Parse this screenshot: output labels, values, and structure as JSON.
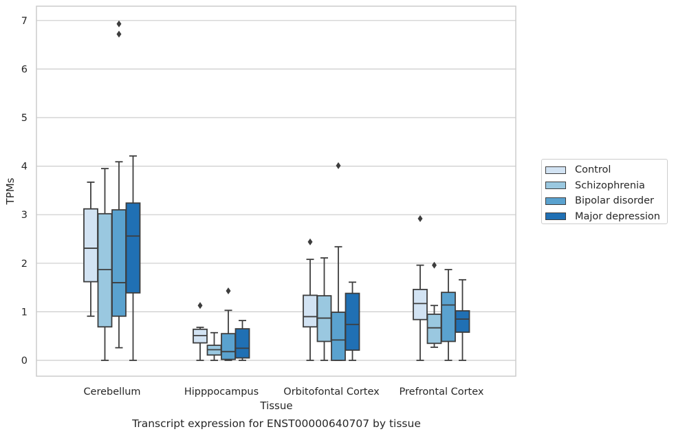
{
  "chart_data": {
    "type": "box",
    "title": "",
    "xlabel": "Tissue",
    "ylabel": "TPMs",
    "caption": "Transcript expression for ENST00000640707 by tissue",
    "ylim": [
      -0.33,
      7.3
    ],
    "yticks": [
      0,
      1,
      2,
      3,
      4,
      5,
      6,
      7
    ],
    "ytick_labels": [
      "0",
      "1",
      "2",
      "3",
      "4",
      "5",
      "6",
      "7"
    ],
    "grid": true,
    "legend_position": "right",
    "categories": [
      "Cerebellum",
      "Hipppocampus",
      "Orbitofontal Cortex",
      "Prefrontal Cortex"
    ],
    "series": [
      {
        "name": "Control",
        "color": "#d2e3f3",
        "boxes": [
          {
            "whislo": 0.91,
            "q1": 1.62,
            "med": 2.31,
            "q3": 3.12,
            "whishi": 3.67,
            "fliers": []
          },
          {
            "whislo": 0.0,
            "q1": 0.36,
            "med": 0.51,
            "q3": 0.64,
            "whishi": 0.68,
            "fliers": [
              1.13
            ]
          },
          {
            "whislo": 0.0,
            "q1": 0.69,
            "med": 0.9,
            "q3": 1.34,
            "whishi": 2.08,
            "fliers": [
              2.44
            ]
          },
          {
            "whislo": 0.0,
            "q1": 0.84,
            "med": 1.17,
            "q3": 1.46,
            "whishi": 1.96,
            "fliers": [
              2.92
            ]
          }
        ]
      },
      {
        "name": "Schizophrenia",
        "color": "#9ac8e0",
        "boxes": [
          {
            "whislo": 0.0,
            "q1": 0.69,
            "med": 1.87,
            "q3": 3.02,
            "whishi": 3.95,
            "fliers": []
          },
          {
            "whislo": 0.0,
            "q1": 0.11,
            "med": 0.22,
            "q3": 0.31,
            "whishi": 0.57,
            "fliers": []
          },
          {
            "whislo": 0.0,
            "q1": 0.39,
            "med": 0.87,
            "q3": 1.33,
            "whishi": 2.11,
            "fliers": []
          },
          {
            "whislo": 0.27,
            "q1": 0.35,
            "med": 0.67,
            "q3": 0.95,
            "whishi": 1.13,
            "fliers": [
              1.96
            ]
          }
        ]
      },
      {
        "name": "Bipolar disorder",
        "color": "#5aa2cf",
        "boxes": [
          {
            "whislo": 0.26,
            "q1": 0.91,
            "med": 1.6,
            "q3": 3.1,
            "whishi": 4.09,
            "fliers": [
              6.72,
              6.93
            ]
          },
          {
            "whislo": 0.0,
            "q1": 0.02,
            "med": 0.18,
            "q3": 0.55,
            "whishi": 1.03,
            "fliers": [
              1.43
            ]
          },
          {
            "whislo": 0.0,
            "q1": 0.0,
            "med": 0.42,
            "q3": 0.99,
            "whishi": 2.34,
            "fliers": [
              4.01
            ]
          },
          {
            "whislo": 0.0,
            "q1": 0.39,
            "med": 1.14,
            "q3": 1.4,
            "whishi": 1.87,
            "fliers": []
          }
        ]
      },
      {
        "name": "Major depression",
        "color": "#2070b4",
        "boxes": [
          {
            "whislo": 0.0,
            "q1": 1.39,
            "med": 2.56,
            "q3": 3.24,
            "whishi": 4.21,
            "fliers": []
          },
          {
            "whislo": 0.0,
            "q1": 0.05,
            "med": 0.25,
            "q3": 0.65,
            "whishi": 0.82,
            "fliers": []
          },
          {
            "whislo": 0.0,
            "q1": 0.21,
            "med": 0.74,
            "q3": 1.38,
            "whishi": 1.61,
            "fliers": []
          },
          {
            "whislo": 0.0,
            "q1": 0.58,
            "med": 0.85,
            "q3": 1.02,
            "whishi": 1.66,
            "fliers": []
          }
        ]
      }
    ]
  }
}
